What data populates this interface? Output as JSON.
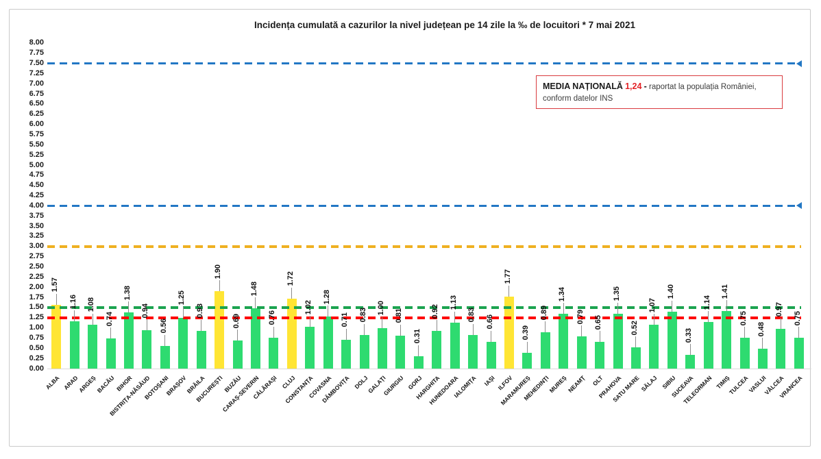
{
  "title": "Incidența cumulată a cazurilor la nivel județean pe 14 zile la ‰ de locuitori *  7 mai 2021",
  "national_average_box": {
    "label": "MEDIA NAȚIONALĂ",
    "value": "1,24",
    "separator": "-",
    "description": "raportat la populația României, conform datelor INS"
  },
  "colors": {
    "bar_default": "#2edb70",
    "bar_highlight": "#ffe534",
    "reference_blue": "#2277c4",
    "reference_gold": "#efb021",
    "reference_green": "#1ba34f",
    "reference_red": "#fe0000",
    "note_border": "#d93a3e",
    "note_value_red": "#e32227"
  },
  "chart_data": {
    "type": "bar",
    "title": "Incidența cumulată a cazurilor la nivel județean pe 14 zile la ‰ de locuitori *  7 mai 2021",
    "xlabel": "",
    "ylabel": "",
    "ylim": [
      0,
      8
    ],
    "ytick_step": 0.25,
    "grid": false,
    "legend": "none",
    "categories": [
      "ALBA",
      "ARAD",
      "ARGEȘ",
      "BACĂU",
      "BIHOR",
      "BISTRIȚA-NĂSĂUD",
      "BOTOȘANI",
      "BRAȘOV",
      "BRĂILA",
      "BUCUREȘTI",
      "BUZĂU",
      "CARAȘ-SEVERIN",
      "CĂLĂRAȘI",
      "CLUJ",
      "CONSTANȚA",
      "COVASNA",
      "DÂMBOVIȚA",
      "DOLJ",
      "GALAȚI",
      "GIURGIU",
      "GORJ",
      "HARGHITA",
      "HUNEDOARA",
      "IALOMIȚA",
      "IAȘI",
      "ILFOV",
      "MARAMUREȘ",
      "MEHEDINȚI",
      "MUREȘ",
      "NEAMȚ",
      "OLT",
      "PRAHOVA",
      "SATU MARE",
      "SĂLAJ",
      "SIBIU",
      "SUCEAVA",
      "TELEORMAN",
      "TIMIȘ",
      "TULCEA",
      "VASLUI",
      "VÂLCEA",
      "VRANCEA"
    ],
    "values": [
      1.57,
      1.16,
      1.08,
      0.74,
      1.38,
      0.94,
      0.56,
      1.25,
      0.93,
      1.9,
      0.69,
      1.48,
      0.76,
      1.72,
      1.02,
      1.28,
      0.71,
      0.83,
      1.0,
      0.81,
      0.31,
      0.92,
      1.13,
      0.83,
      0.66,
      1.77,
      0.39,
      0.89,
      1.34,
      0.79,
      0.65,
      1.35,
      0.52,
      1.07,
      1.4,
      0.33,
      1.14,
      1.41,
      0.75,
      0.48,
      0.97,
      0.75
    ],
    "highlighted_categories": [
      "ALBA",
      "BUCUREȘTI",
      "CLUJ",
      "ILFOV"
    ],
    "reference_lines": [
      {
        "value": 7.5,
        "color": "#2277c4",
        "thickness": 3,
        "arrow": true
      },
      {
        "value": 4.0,
        "color": "#2277c4",
        "thickness": 3,
        "arrow": true
      },
      {
        "value": 3.0,
        "color": "#efb021",
        "thickness": 4,
        "arrow": false
      },
      {
        "value": 1.5,
        "color": "#1ba34f",
        "thickness": 4,
        "arrow": false
      },
      {
        "value": 1.24,
        "color": "#fe0000",
        "thickness": 4,
        "arrow": false
      }
    ]
  }
}
